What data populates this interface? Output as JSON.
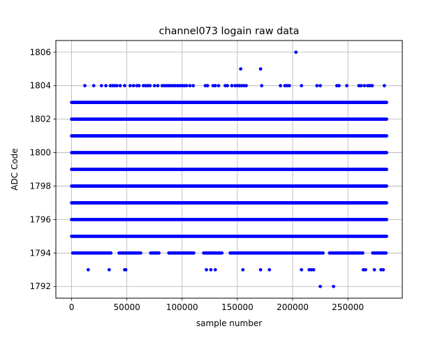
{
  "chart_data": {
    "type": "scatter",
    "title": "channel073 logain raw data",
    "xlabel": "sample number",
    "ylabel": "ADC Code",
    "xlim": [
      -14250,
      299250
    ],
    "ylim": [
      1791.3,
      1806.7
    ],
    "grid": true,
    "marker_color": "#0000ff",
    "x_ticks": [
      0,
      50000,
      100000,
      150000,
      200000,
      250000
    ],
    "x_tick_labels": [
      "0",
      "50000",
      "100000",
      "150000",
      "200000",
      "250000"
    ],
    "y_ticks": [
      1792,
      1794,
      1796,
      1798,
      1800,
      1802,
      1804,
      1806
    ],
    "y_tick_labels": [
      "1792",
      "1794",
      "1796",
      "1798",
      "1800",
      "1802",
      "1804",
      "1806"
    ],
    "x_range": [
      0,
      285000
    ],
    "series": [
      {
        "values_description_free": true,
        "dense_levels": [
          {
            "y": 1795,
            "x_start": 0,
            "x_end": 285000
          },
          {
            "y": 1796,
            "x_start": 0,
            "x_end": 285000
          },
          {
            "y": 1797,
            "x_start": 0,
            "x_end": 285000
          },
          {
            "y": 1798,
            "x_start": 0,
            "x_end": 285000
          },
          {
            "y": 1799,
            "x_start": 0,
            "x_end": 285000
          },
          {
            "y": 1800,
            "x_start": 0,
            "x_end": 285000
          },
          {
            "y": 1801,
            "x_start": 0,
            "x_end": 285000
          },
          {
            "y": 1802,
            "x_start": 0,
            "x_end": 285000
          },
          {
            "y": 1803,
            "x_start": 0,
            "x_end": 285000
          }
        ],
        "sparse_levels": [
          {
            "y": 1794,
            "x_start": 1000,
            "x_end": 285000,
            "gaps": [
              [
                36000,
                42000
              ],
              [
                63000,
                70000
              ],
              [
                80000,
                87000
              ],
              [
                112000,
                118000
              ],
              [
                137000,
                142000
              ],
              [
                229000,
                232000
              ],
              [
                265000,
                272000
              ]
            ]
          }
        ],
        "points": [
          [
            203000,
            1806
          ],
          [
            153000,
            1805
          ],
          [
            171000,
            1805
          ],
          [
            12000,
            1804
          ],
          [
            20000,
            1804
          ],
          [
            27000,
            1804
          ],
          [
            31000,
            1804
          ],
          [
            35000,
            1804
          ],
          [
            37000,
            1804
          ],
          [
            39000,
            1804
          ],
          [
            41000,
            1804
          ],
          [
            44000,
            1804
          ],
          [
            48000,
            1804
          ],
          [
            53000,
            1804
          ],
          [
            56000,
            1804
          ],
          [
            59000,
            1804
          ],
          [
            61000,
            1804
          ],
          [
            65000,
            1804
          ],
          [
            67000,
            1804
          ],
          [
            69000,
            1804
          ],
          [
            71000,
            1804
          ],
          [
            75000,
            1804
          ],
          [
            78000,
            1804
          ],
          [
            82000,
            1804
          ],
          [
            84000,
            1804
          ],
          [
            86000,
            1804
          ],
          [
            88000,
            1804
          ],
          [
            90000,
            1804
          ],
          [
            92000,
            1804
          ],
          [
            94000,
            1804
          ],
          [
            96000,
            1804
          ],
          [
            98000,
            1804
          ],
          [
            100000,
            1804
          ],
          [
            102000,
            1804
          ],
          [
            104000,
            1804
          ],
          [
            107000,
            1804
          ],
          [
            110000,
            1804
          ],
          [
            121000,
            1804
          ],
          [
            123000,
            1804
          ],
          [
            128000,
            1804
          ],
          [
            130000,
            1804
          ],
          [
            133000,
            1804
          ],
          [
            139000,
            1804
          ],
          [
            141000,
            1804
          ],
          [
            145000,
            1804
          ],
          [
            148000,
            1804
          ],
          [
            150000,
            1804
          ],
          [
            152000,
            1804
          ],
          [
            154000,
            1804
          ],
          [
            156000,
            1804
          ],
          [
            158000,
            1804
          ],
          [
            172000,
            1804
          ],
          [
            189000,
            1804
          ],
          [
            193000,
            1804
          ],
          [
            195000,
            1804
          ],
          [
            197000,
            1804
          ],
          [
            208000,
            1804
          ],
          [
            222000,
            1804
          ],
          [
            225000,
            1804
          ],
          [
            240000,
            1804
          ],
          [
            242000,
            1804
          ],
          [
            249000,
            1804
          ],
          [
            260000,
            1804
          ],
          [
            262000,
            1804
          ],
          [
            265000,
            1804
          ],
          [
            268000,
            1804
          ],
          [
            270000,
            1804
          ],
          [
            272000,
            1804
          ],
          [
            283000,
            1804
          ],
          [
            15000,
            1793
          ],
          [
            34000,
            1793
          ],
          [
            48000,
            1793
          ],
          [
            49000,
            1793
          ],
          [
            122000,
            1793
          ],
          [
            126000,
            1793
          ],
          [
            130000,
            1793
          ],
          [
            155000,
            1793
          ],
          [
            171000,
            1793
          ],
          [
            179000,
            1793
          ],
          [
            208000,
            1793
          ],
          [
            215000,
            1793
          ],
          [
            217000,
            1793
          ],
          [
            219000,
            1793
          ],
          [
            264000,
            1793
          ],
          [
            266000,
            1793
          ],
          [
            274000,
            1793
          ],
          [
            280000,
            1793
          ],
          [
            282000,
            1793
          ],
          [
            225000,
            1792
          ],
          [
            237000,
            1792
          ]
        ]
      }
    ]
  }
}
